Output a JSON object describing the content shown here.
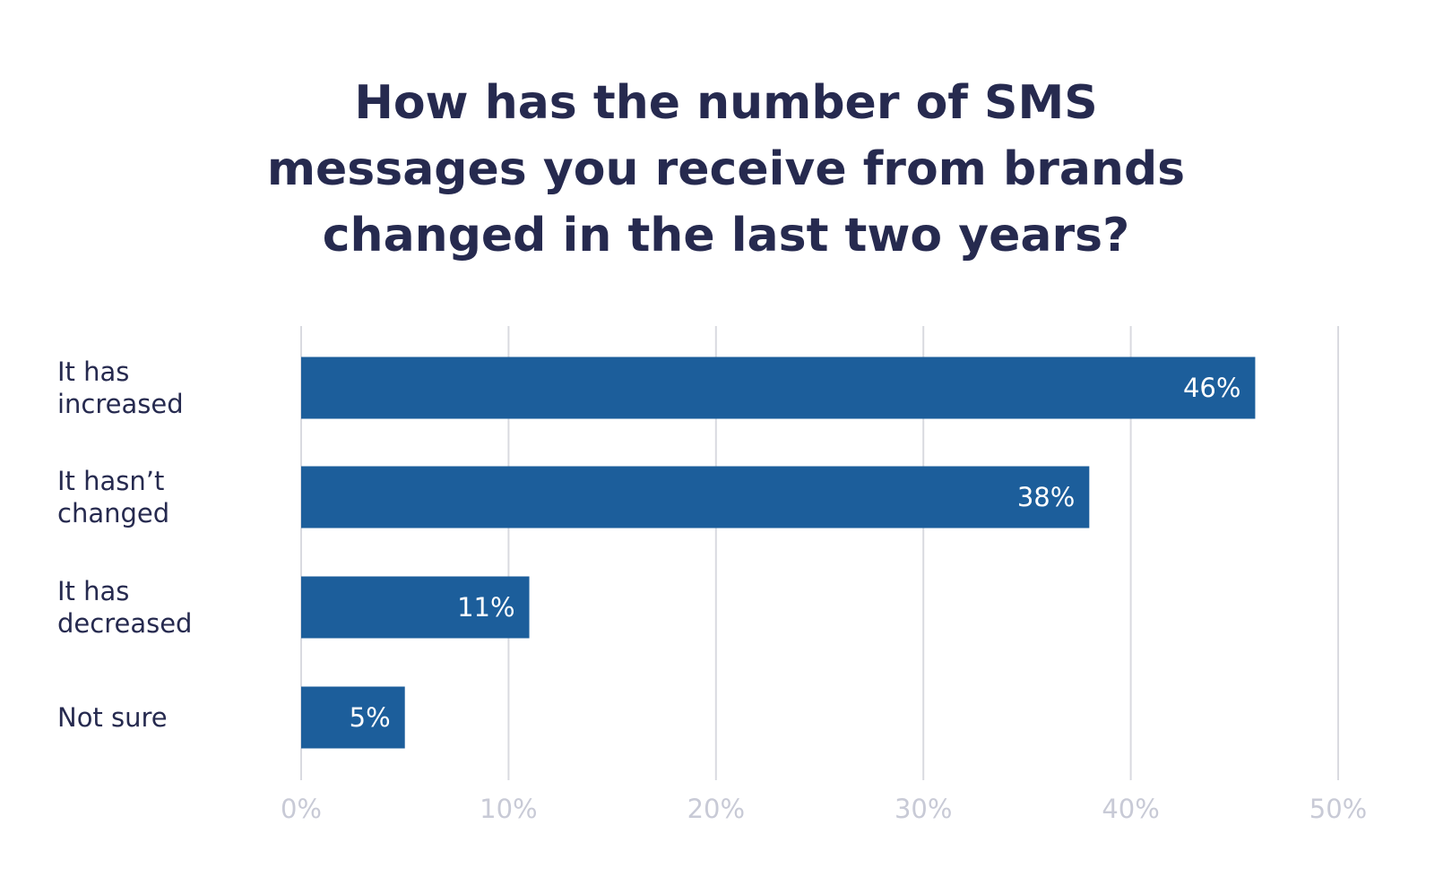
{
  "chart_data": {
    "type": "bar",
    "orientation": "horizontal",
    "title": "How has the number of SMS messages you receive from brands changed in the last two years?",
    "categories": [
      "It has increased",
      "It hasn’t changed",
      "It has decreased",
      "Not sure"
    ],
    "values": [
      46,
      38,
      11,
      5
    ],
    "value_labels": [
      "46%",
      "38%",
      "11%",
      "5%"
    ],
    "color": "#1c5e9b",
    "xlim": [
      0,
      50
    ],
    "xticks": [
      {
        "value": 0,
        "label": "0%"
      },
      {
        "value": 10,
        "label": "10%"
      },
      {
        "value": 20,
        "label": "20%"
      },
      {
        "value": 30,
        "label": "30%"
      },
      {
        "value": 40,
        "label": "40%"
      },
      {
        "value": 50,
        "label": "50%"
      }
    ],
    "grid": true
  }
}
